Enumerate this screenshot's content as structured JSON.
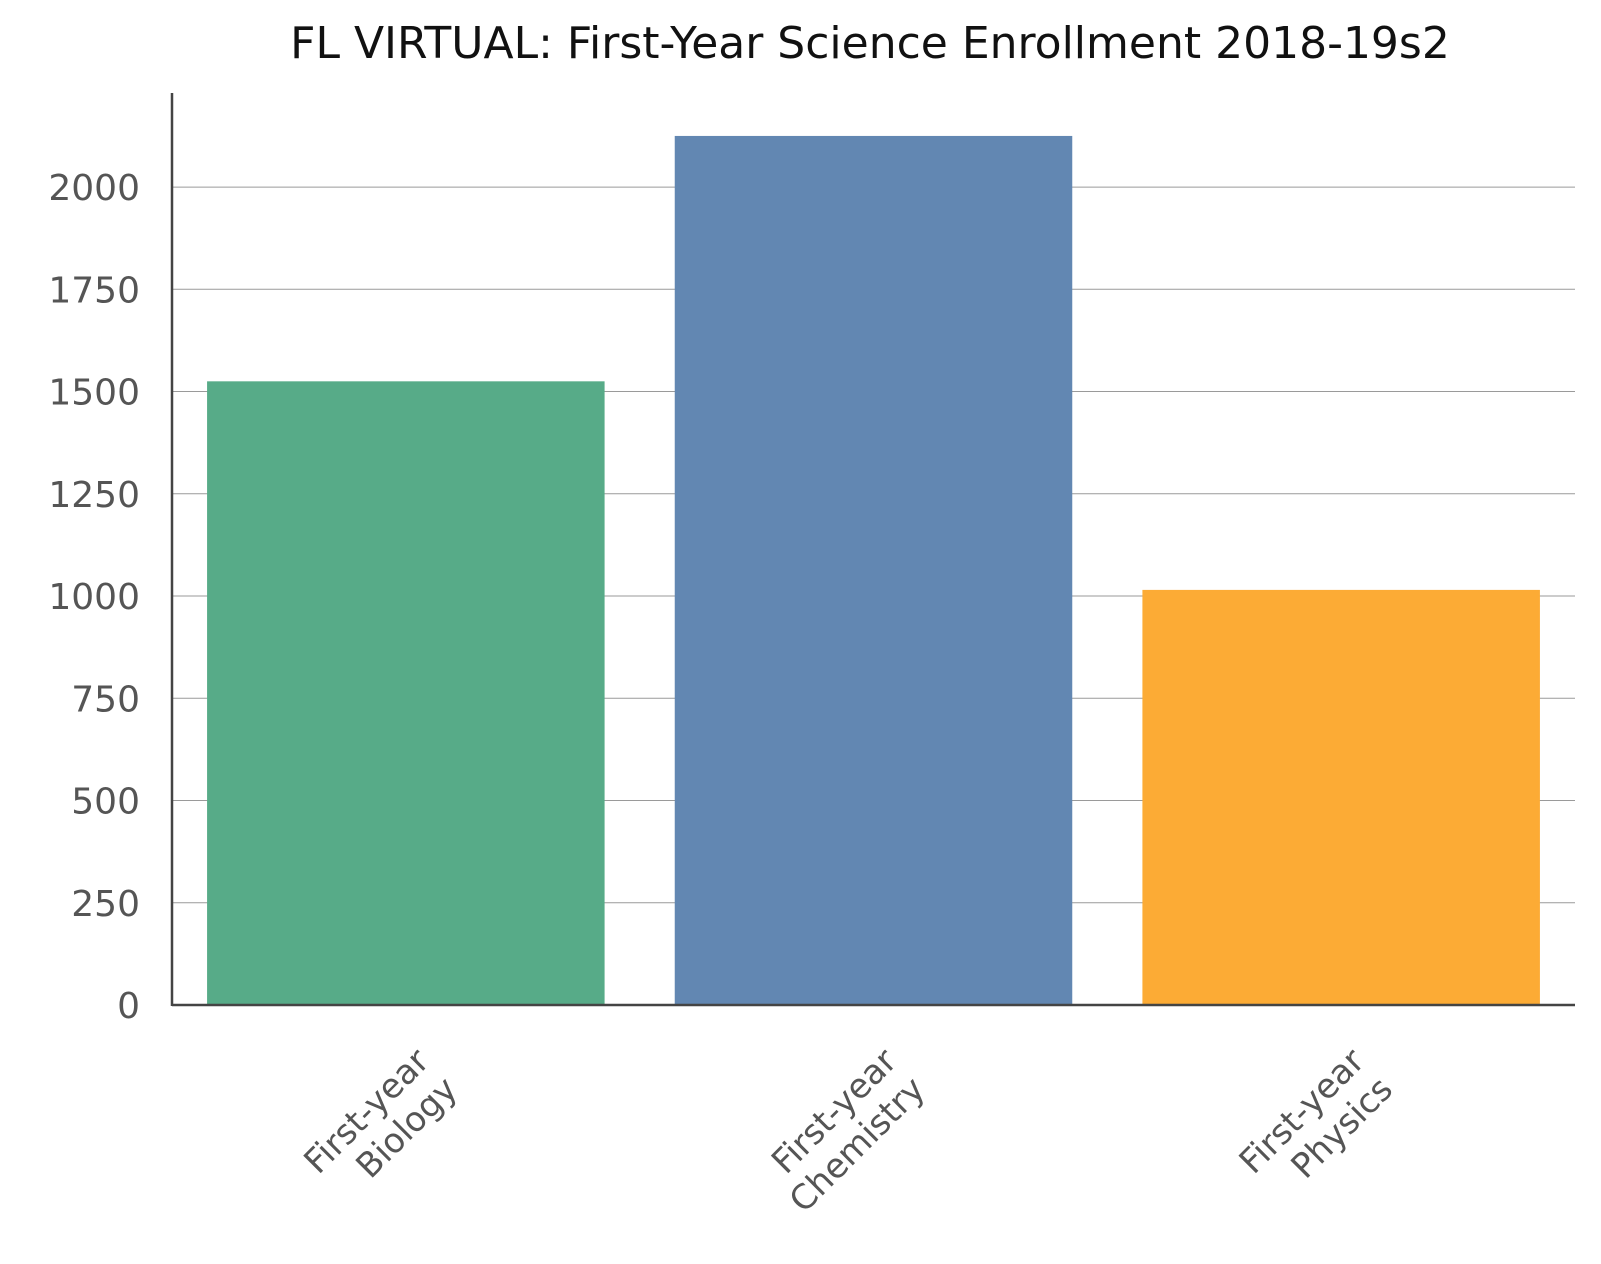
{
  "chart_data": {
    "type": "bar",
    "title": "FL VIRTUAL: First-Year Science Enrollment 2018-19s2",
    "xlabel": "",
    "ylabel": "",
    "categories": [
      "First-year Biology",
      "First-year Chemistry",
      "First-year Physics"
    ],
    "category_lines": [
      [
        "First-year",
        "Biology"
      ],
      [
        "First-year",
        "Chemistry"
      ],
      [
        "First-year",
        "Physics"
      ]
    ],
    "values": [
      1525,
      2125,
      1015
    ],
    "colors": [
      "#57AB88",
      "#6287B2",
      "#FCAB35"
    ],
    "ylim": [
      0,
      2230
    ],
    "yticks": [
      0,
      250,
      500,
      750,
      1000,
      1250,
      1500,
      1750,
      2000
    ],
    "grid": true,
    "legend": "none"
  }
}
